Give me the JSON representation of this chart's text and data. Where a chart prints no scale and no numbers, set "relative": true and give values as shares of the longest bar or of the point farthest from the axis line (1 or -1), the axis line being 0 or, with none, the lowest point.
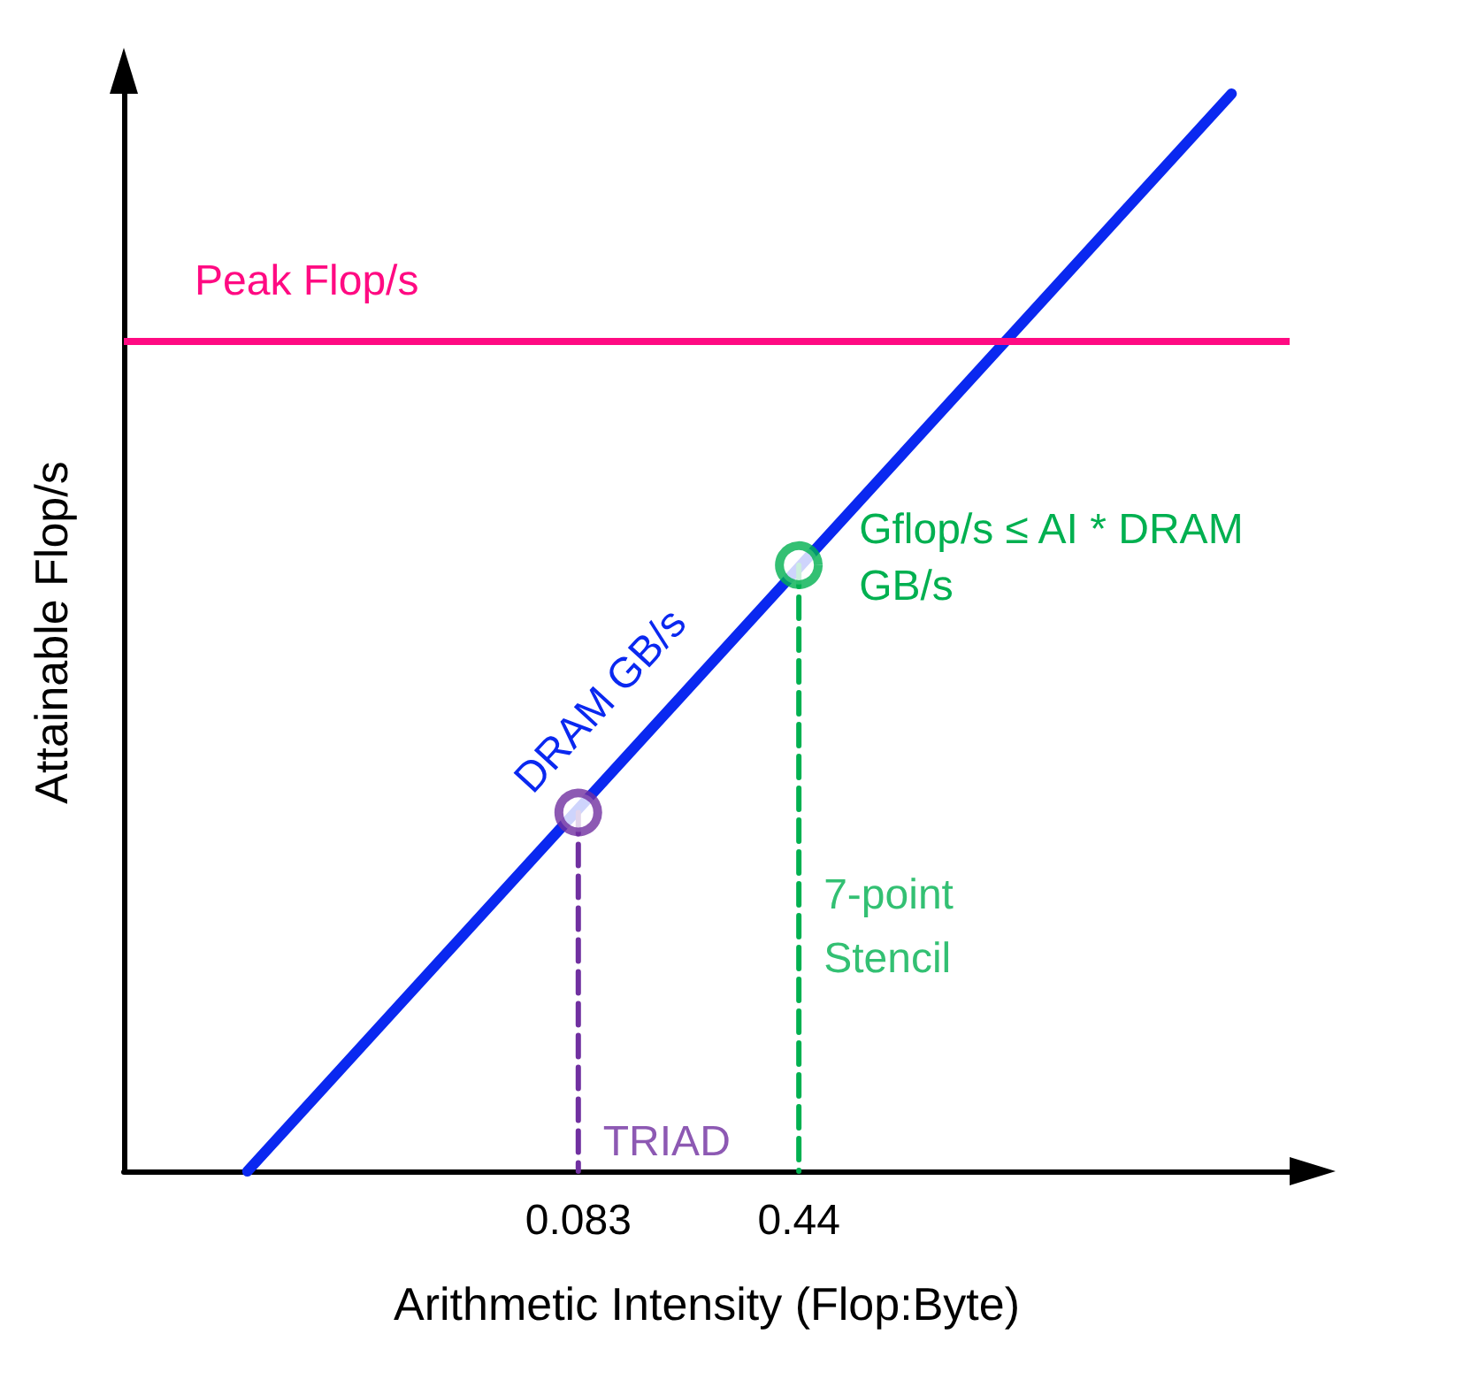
{
  "chart_data": {
    "type": "line",
    "relative": true,
    "log": "x",
    "xlabel": "Arithmetic Intensity (Flop:Byte)",
    "ylabel": "Attainable Flop/s",
    "xlim": [
      0.00267,
      18
    ],
    "xticks": [
      0.083,
      0.44
    ],
    "grid": false,
    "legend": false,
    "tick_labels": "x",
    "marker": "none",
    "series": [
      {
        "name": "DRAM GB/s",
        "color": "#0a28f0",
        "x": [
          0.0068,
          11.6
        ],
        "values": [
          0,
          1
        ]
      },
      {
        "type": "line",
        "line_style": "dashed",
        "color": "#7030a0",
        "x": [
          0.083,
          0.083
        ],
        "values": [
          0.333,
          0
        ]
      },
      {
        "type": "line",
        "line_style": "dashed",
        "color": "#00b050",
        "x": [
          0.44,
          0.44
        ],
        "values": [
          0.5625,
          0
        ]
      },
      {
        "name": "TRIAD",
        "type": "scatter",
        "marker": "circle",
        "color": "#7030a0",
        "x": [
          0.083
        ],
        "values": [
          0.333
        ]
      },
      {
        "name": "7-point Stencil",
        "type": "scatter",
        "marker": "circle",
        "color": "#00b050",
        "x": [
          0.44
        ],
        "values": [
          0.5625
        ]
      }
    ],
    "ref_lines": [
      {
        "axis": "y",
        "value": 0.773,
        "label": "Peak Flop/s",
        "color": "#ff0a82"
      }
    ],
    "annotations": [
      {
        "text": "Gflop/s ≤ AI * DRAM GB/s",
        "x": 0.44,
        "y": 0.5625
      }
    ]
  }
}
